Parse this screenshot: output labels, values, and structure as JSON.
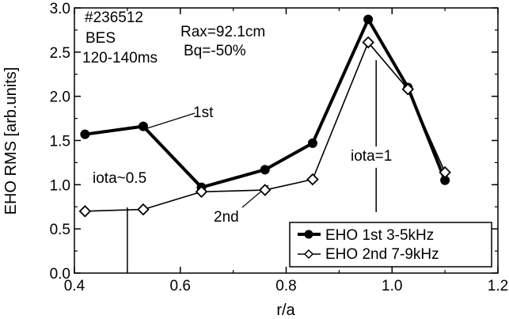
{
  "chart_data": {
    "type": "line",
    "xlabel": "r/a",
    "ylabel": "EHO RMS [arb.units]",
    "xlim": [
      0.4,
      1.2
    ],
    "ylim": [
      0.0,
      3.0
    ],
    "x_ticks": [
      "0.4",
      "0.6",
      "0.8",
      "1.0",
      "1.2"
    ],
    "y_ticks": [
      "0.0",
      "0.5",
      "1.0",
      "1.5",
      "2.0",
      "2.5",
      "3.0"
    ],
    "series": [
      {
        "name": "EHO 1st 3-5kHz",
        "marker": "filled-circle",
        "x": [
          0.42,
          0.53,
          0.64,
          0.76,
          0.85,
          0.955,
          1.03,
          1.1
        ],
        "y": [
          1.57,
          1.66,
          0.97,
          1.17,
          1.47,
          2.87,
          2.1,
          1.05
        ]
      },
      {
        "name": "EHO 2nd 7-9kHz",
        "marker": "open-diamond",
        "x": [
          0.42,
          0.53,
          0.64,
          0.76,
          0.85,
          0.955,
          1.03,
          1.1
        ],
        "y": [
          0.7,
          0.72,
          0.92,
          0.94,
          1.06,
          2.61,
          2.08,
          1.14
        ]
      }
    ],
    "info_left": [
      "#236512",
      "BES",
      "120-140ms"
    ],
    "info_right": [
      "Rax=92.1cm",
      "Bq=-50%"
    ],
    "annotations": {
      "first": "1st",
      "second": "2nd",
      "iota_half": "iota~0.5",
      "iota_one": "iota=1"
    },
    "iota_lines": {
      "half_x": 0.5,
      "one_x": 0.97
    },
    "legend_position": "bottom-right",
    "grid": false
  }
}
